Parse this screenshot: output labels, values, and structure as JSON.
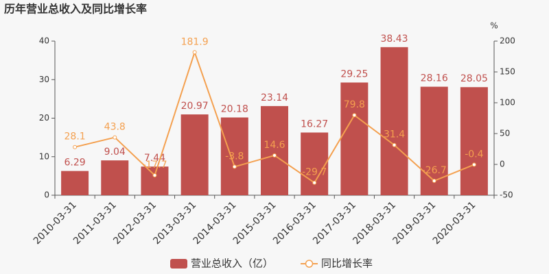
{
  "chart_data": {
    "type": "bar",
    "title": "历年营业总收入及同比增长率",
    "y2_label": "%",
    "categories": [
      "2010-03-31",
      "2011-03-31",
      "2012-03-31",
      "2013-03-31",
      "2014-03-31",
      "2015-03-31",
      "2016-03-31",
      "2017-03-31",
      "2018-03-31",
      "2019-03-31",
      "2020-03-31"
    ],
    "series": [
      {
        "name": "营业总收入（亿）",
        "type": "bar",
        "color": "#c0504d",
        "values": [
          6.29,
          9.04,
          7.44,
          20.97,
          20.18,
          23.14,
          16.27,
          29.25,
          38.43,
          28.16,
          28.05
        ]
      },
      {
        "name": "同比增长率",
        "type": "line",
        "axis": "y2",
        "color": "#f4a04f",
        "values": [
          28.1,
          43.8,
          -17.7,
          181.9,
          -3.8,
          14.6,
          -29.7,
          79.8,
          31.4,
          -26.7,
          -0.4
        ]
      }
    ],
    "ylim": [
      0,
      40
    ],
    "yticks": [
      0,
      10,
      20,
      30,
      40
    ],
    "y2lim": [
      -50,
      200
    ],
    "y2ticks": [
      -50,
      0,
      50,
      100,
      150,
      200
    ],
    "grid": false,
    "legend": "bottom"
  }
}
